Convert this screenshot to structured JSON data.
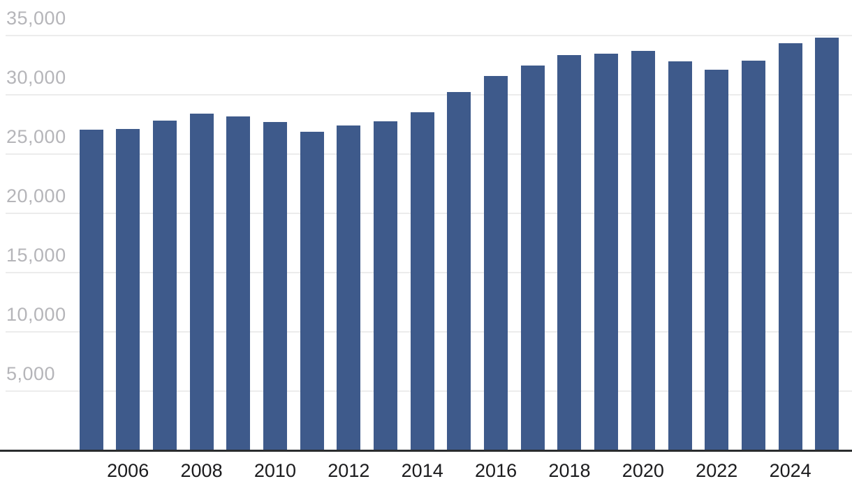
{
  "chart_data": {
    "type": "bar",
    "title": "",
    "xlabel": "",
    "ylabel": "",
    "categories": [
      "2005",
      "2006",
      "2007",
      "2008",
      "2009",
      "2010",
      "2011",
      "2012",
      "2013",
      "2014",
      "2015",
      "2016",
      "2017",
      "2018",
      "2019",
      "2020",
      "2021",
      "2022",
      "2023",
      "2024",
      "2025"
    ],
    "values": [
      27050,
      27100,
      27800,
      28400,
      28150,
      27700,
      26900,
      27400,
      27750,
      28550,
      30250,
      31600,
      32500,
      33350,
      33450,
      33700,
      32850,
      32100,
      32900,
      34350,
      34850
    ],
    "ylim": [
      0,
      35000
    ],
    "y_ticks": [
      5000,
      10000,
      15000,
      20000,
      25000,
      30000,
      35000
    ],
    "y_tick_labels": [
      "5,000",
      "10,000",
      "15,000",
      "20,000",
      "25,000",
      "30,000",
      "35,000"
    ],
    "x_tick_labels": [
      "2006",
      "2008",
      "2010",
      "2012",
      "2014",
      "2016",
      "2018",
      "2020",
      "2022",
      "2024"
    ],
    "grid": "horizontal",
    "legend": "none",
    "bar_color": "#3e5a8b"
  },
  "colors": {
    "background": "#ffffff",
    "bar": "#3e5a8b",
    "grid_line": "#ececec",
    "axis_line": "#2a2c2e",
    "y_tick_text": "#b5b5b9",
    "x_tick_text": "#1b1b1d"
  }
}
